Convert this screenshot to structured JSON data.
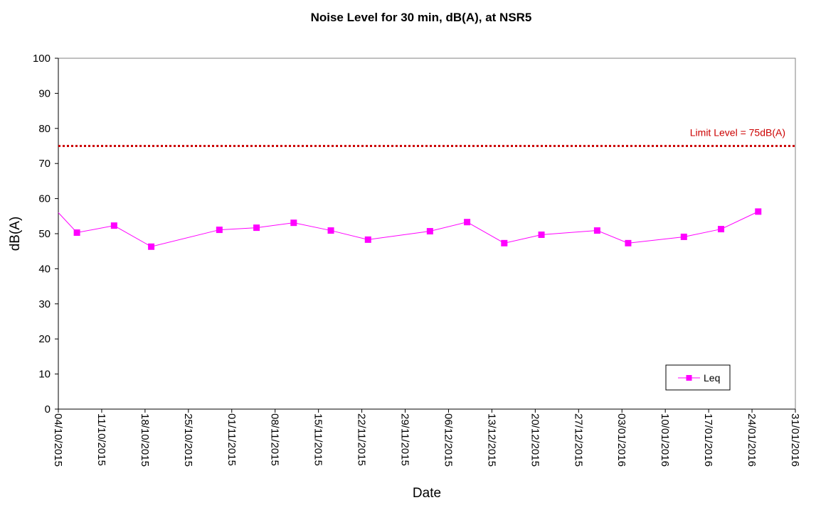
{
  "chart_data": {
    "type": "line",
    "title": "Noise Level for 30 min, dB(A), at NSR5",
    "xlabel": "Date",
    "ylabel": "dB(A)",
    "ylim": [
      0,
      100
    ],
    "yticks": [
      0,
      10,
      20,
      30,
      40,
      50,
      60,
      70,
      80,
      90,
      100
    ],
    "xlim": [
      "2015-10-04",
      "2016-01-31"
    ],
    "xtick_labels": [
      "04/10/2015",
      "11/10/2015",
      "18/10/2015",
      "25/10/2015",
      "01/11/2015",
      "08/11/2015",
      "15/11/2015",
      "22/11/2015",
      "29/11/2015",
      "06/12/2015",
      "13/12/2015",
      "20/12/2015",
      "27/12/2015",
      "03/01/2016",
      "10/01/2016",
      "17/01/2016",
      "24/01/2016",
      "31/01/2016"
    ],
    "grid": false,
    "legend_position": "bottom-right",
    "series": [
      {
        "name": "Leq",
        "color": "#ff00ff",
        "marker": "square",
        "points": [
          {
            "x": "2015-10-07",
            "y": 50.3
          },
          {
            "x": "2015-10-13",
            "y": 52.3
          },
          {
            "x": "2015-10-19",
            "y": 46.3
          },
          {
            "x": "2015-10-30",
            "y": 51.1
          },
          {
            "x": "2015-11-05",
            "y": 51.7
          },
          {
            "x": "2015-11-11",
            "y": 53.1
          },
          {
            "x": "2015-11-17",
            "y": 50.9
          },
          {
            "x": "2015-11-23",
            "y": 48.3
          },
          {
            "x": "2015-12-03",
            "y": 50.7
          },
          {
            "x": "2015-12-09",
            "y": 53.3
          },
          {
            "x": "2015-12-15",
            "y": 47.3
          },
          {
            "x": "2015-12-21",
            "y": 49.7
          },
          {
            "x": "2015-12-30",
            "y": 50.9
          },
          {
            "x": "2016-01-04",
            "y": 47.3
          },
          {
            "x": "2016-01-13",
            "y": 49.1
          },
          {
            "x": "2016-01-19",
            "y": 51.3
          },
          {
            "x": "2016-01-25",
            "y": 56.3
          }
        ],
        "incoming_line_start": {
          "x": "2015-10-04",
          "y": 56
        }
      }
    ],
    "limit_line": {
      "value": 75,
      "label": "Limit Level = 75dB(A)",
      "color": "#cc0000",
      "style": "dotted"
    }
  }
}
